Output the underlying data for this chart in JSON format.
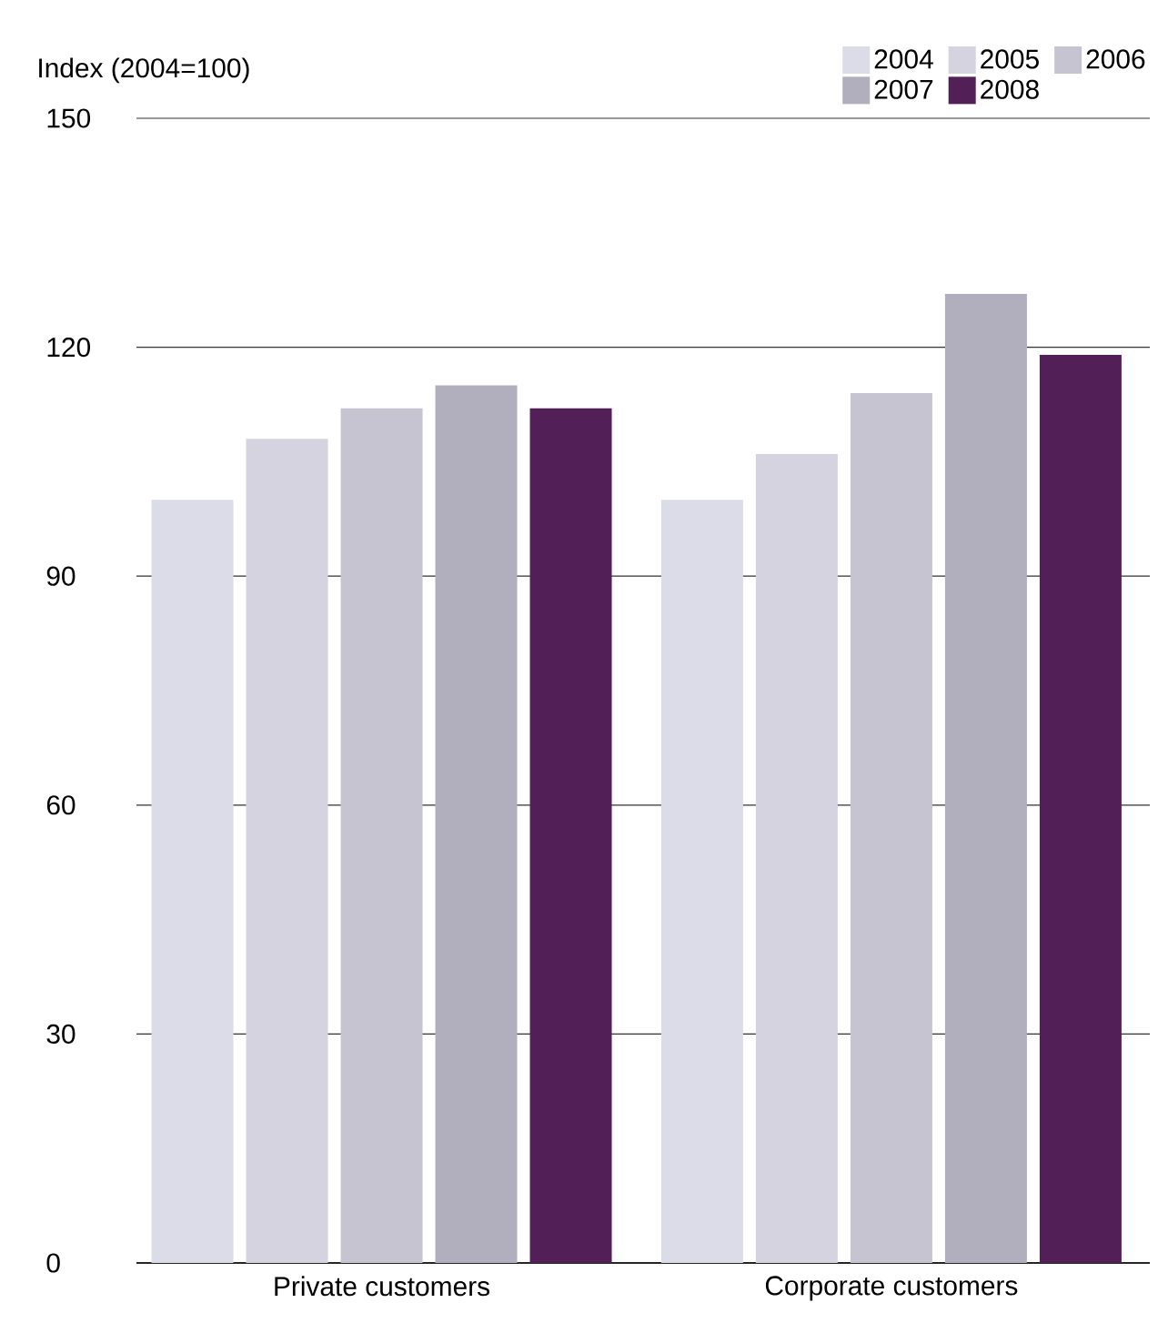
{
  "chart_data": {
    "type": "bar",
    "ylabel": "Index (2004=100)",
    "categories": [
      "Private customers",
      "Corporate customers"
    ],
    "series": [
      {
        "name": "2004",
        "color": "#dcdce8",
        "values": [
          100,
          100
        ]
      },
      {
        "name": "2005",
        "color": "#d4d3df",
        "values": [
          108,
          106
        ]
      },
      {
        "name": "2006",
        "color": "#c5c4d0",
        "values": [
          112,
          114
        ]
      },
      {
        "name": "2007",
        "color": "#b1afbd",
        "values": [
          115,
          127
        ]
      },
      {
        "name": "2008",
        "color": "#521f57",
        "values": [
          112,
          119
        ]
      }
    ],
    "ylim": [
      0,
      150
    ],
    "yticks": [
      0,
      30,
      60,
      90,
      120,
      150
    ],
    "grid": "y",
    "legend": "top right"
  }
}
